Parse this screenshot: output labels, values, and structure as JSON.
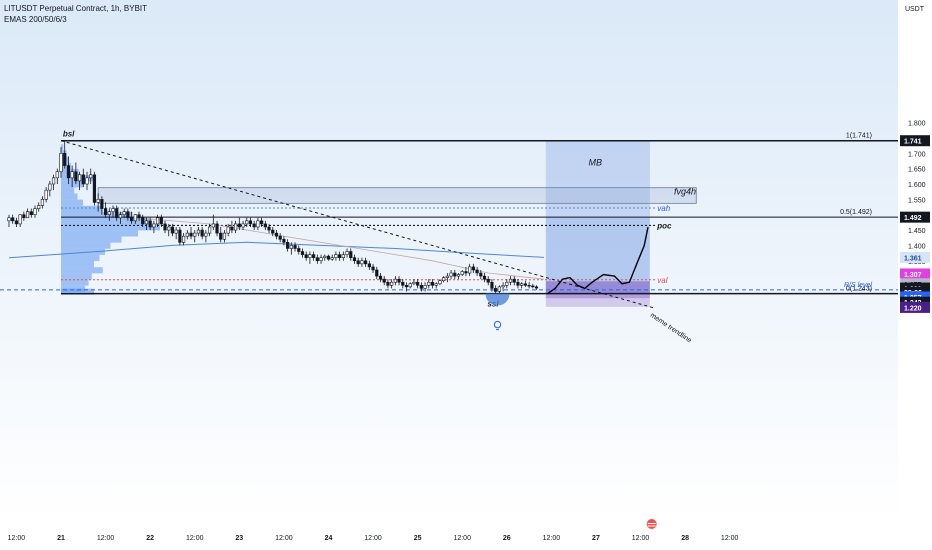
{
  "header": {
    "title": "LITUSDT Perpetual Contract, 1h, BYBIT",
    "indicator": "EMAS 200/50/6/3",
    "currency": "USDT"
  },
  "colors": {
    "up": "#ffffff",
    "down": "#131722",
    "range_fill": "#1e5bd1",
    "fvg_fill": "#8aa4c8",
    "ema_long": "#4f86d6",
    "ema_short": "#c4a8a8",
    "profile": "#4f8ef0",
    "bg_top": "#dbe9f8",
    "bg_bottom": "#ffffff"
  },
  "chart_data": {
    "type": "candlestick",
    "ylim": [
      1.2,
      1.8
    ],
    "y_ticks": [
      "1.800",
      "1.750",
      "1.700",
      "1.650",
      "1.600",
      "1.550",
      "1.500",
      "1.450",
      "1.400",
      "1.350"
    ],
    "x_ticks": [
      {
        "label": "12:00",
        "t": -12
      },
      {
        "label": "21",
        "t": 0
      },
      {
        "label": "12:00",
        "t": 12
      },
      {
        "label": "22",
        "t": 24
      },
      {
        "label": "12:00",
        "t": 36
      },
      {
        "label": "23",
        "t": 48
      },
      {
        "label": "12:00",
        "t": 60
      },
      {
        "label": "24",
        "t": 72
      },
      {
        "label": "12:00",
        "t": 84
      },
      {
        "label": "25",
        "t": 96
      },
      {
        "label": "12:00",
        "t": 108
      },
      {
        "label": "26",
        "t": 120
      },
      {
        "label": "12:00",
        "t": 132
      },
      {
        "label": "27",
        "t": 144
      },
      {
        "label": "12:00",
        "t": 156
      },
      {
        "label": "28",
        "t": 168
      },
      {
        "label": "12:00",
        "t": 180
      }
    ],
    "price_badges": [
      {
        "label": "1.741",
        "price": 1.741,
        "bg": "#131722",
        "fg": "#ffffff"
      },
      {
        "label": "1.492",
        "price": 1.492,
        "bg": "#131722",
        "fg": "#ffffff"
      },
      {
        "label": "1.361",
        "price": 1.361,
        "bg": "#d6e4f7",
        "fg": "#1e4fa0"
      },
      {
        "label": "1.307",
        "price": 1.307,
        "bg": "#e040e0",
        "fg": "#ffffff"
      },
      {
        "label": "1.275",
        "price": 1.275,
        "bg": "#b6b6c8",
        "fg": "#131722"
      },
      {
        "label": "1.261",
        "price": 1.261,
        "bg": "#131722",
        "fg": "#ffffff"
      },
      {
        "label": "33:06",
        "price": 1.248,
        "bg": "#131722",
        "fg": "#ffffff"
      },
      {
        "label": "1.257",
        "price": 1.232,
        "bg": "#2962ff",
        "fg": "#ffffff"
      },
      {
        "label": "1.243",
        "price": 1.215,
        "bg": "#131722",
        "fg": "#ffffff"
      },
      {
        "label": "1.220",
        "price": 1.198,
        "bg": "#4a1f8a",
        "fg": "#ffffff"
      }
    ],
    "levels": [
      {
        "name": "fib-1",
        "price": 1.741,
        "label": "1(1.741)"
      },
      {
        "name": "fib-0-5",
        "price": 1.492,
        "label": "0.5(1.492)"
      },
      {
        "name": "fib-0",
        "price": 1.243,
        "label": "0(1.243)"
      },
      {
        "name": "vah",
        "price": 1.522,
        "label": "vah"
      },
      {
        "name": "poc",
        "price": 1.465,
        "label": "poc"
      },
      {
        "name": "val",
        "price": 1.288,
        "label": "val"
      },
      {
        "name": "rs-level",
        "price": 1.255,
        "label": "R/S level"
      }
    ],
    "annotations": {
      "bsl": "bsl",
      "ssl": "ssl",
      "mb": "MB",
      "fvg": "fvg4h",
      "trendline": "meme trendline"
    },
    "fvg_zone": [
      1.537,
      1.588
    ],
    "mb_zone": [
      1.243,
      1.741
    ],
    "target_box": [
      1.228,
      1.283
    ],
    "candles": [
      [
        -14,
        1.48,
        1.5,
        1.46,
        1.49
      ],
      [
        -13,
        1.49,
        1.5,
        1.47,
        1.48
      ],
      [
        -12,
        1.48,
        1.49,
        1.46,
        1.47
      ],
      [
        -11,
        1.47,
        1.5,
        1.46,
        1.5
      ],
      [
        -10,
        1.5,
        1.51,
        1.48,
        1.49
      ],
      [
        -9,
        1.49,
        1.52,
        1.49,
        1.51
      ],
      [
        -8,
        1.51,
        1.52,
        1.49,
        1.5
      ],
      [
        -7,
        1.5,
        1.53,
        1.49,
        1.52
      ],
      [
        -6,
        1.52,
        1.54,
        1.51,
        1.53
      ],
      [
        -5,
        1.53,
        1.56,
        1.52,
        1.55
      ],
      [
        -4,
        1.55,
        1.59,
        1.54,
        1.58
      ],
      [
        -3,
        1.58,
        1.61,
        1.56,
        1.6
      ],
      [
        -2,
        1.6,
        1.63,
        1.58,
        1.62
      ],
      [
        -1,
        1.62,
        1.65,
        1.6,
        1.64
      ],
      [
        0,
        1.64,
        1.72,
        1.62,
        1.7
      ],
      [
        1,
        1.7,
        1.741,
        1.65,
        1.66
      ],
      [
        2,
        1.66,
        1.69,
        1.6,
        1.62
      ],
      [
        3,
        1.62,
        1.66,
        1.59,
        1.64
      ],
      [
        4,
        1.64,
        1.67,
        1.6,
        1.61
      ],
      [
        5,
        1.61,
        1.64,
        1.58,
        1.63
      ],
      [
        6,
        1.63,
        1.65,
        1.59,
        1.6
      ],
      [
        7,
        1.6,
        1.64,
        1.58,
        1.62
      ],
      [
        8,
        1.62,
        1.65,
        1.6,
        1.63
      ],
      [
        9,
        1.63,
        1.64,
        1.53,
        1.54
      ],
      [
        10,
        1.54,
        1.57,
        1.51,
        1.55
      ],
      [
        11,
        1.55,
        1.56,
        1.5,
        1.52
      ],
      [
        12,
        1.52,
        1.54,
        1.49,
        1.5
      ],
      [
        13,
        1.5,
        1.52,
        1.48,
        1.51
      ],
      [
        14,
        1.51,
        1.53,
        1.49,
        1.52
      ],
      [
        15,
        1.52,
        1.53,
        1.48,
        1.49
      ],
      [
        16,
        1.49,
        1.51,
        1.47,
        1.5
      ],
      [
        17,
        1.5,
        1.52,
        1.49,
        1.51
      ],
      [
        18,
        1.51,
        1.52,
        1.48,
        1.49
      ],
      [
        19,
        1.49,
        1.51,
        1.47,
        1.48
      ],
      [
        20,
        1.48,
        1.5,
        1.47,
        1.5
      ],
      [
        21,
        1.5,
        1.51,
        1.48,
        1.49
      ],
      [
        22,
        1.49,
        1.5,
        1.46,
        1.47
      ],
      [
        23,
        1.47,
        1.49,
        1.45,
        1.48
      ],
      [
        24,
        1.48,
        1.49,
        1.45,
        1.46
      ],
      [
        25,
        1.46,
        1.48,
        1.44,
        1.47
      ],
      [
        26,
        1.47,
        1.5,
        1.46,
        1.49
      ],
      [
        27,
        1.49,
        1.5,
        1.46,
        1.47
      ],
      [
        28,
        1.47,
        1.48,
        1.44,
        1.45
      ],
      [
        29,
        1.45,
        1.47,
        1.43,
        1.46
      ],
      [
        30,
        1.46,
        1.47,
        1.43,
        1.44
      ],
      [
        31,
        1.44,
        1.46,
        1.42,
        1.45
      ],
      [
        32,
        1.45,
        1.46,
        1.4,
        1.41
      ],
      [
        33,
        1.41,
        1.44,
        1.4,
        1.43
      ],
      [
        34,
        1.43,
        1.45,
        1.42,
        1.44
      ],
      [
        35,
        1.44,
        1.46,
        1.42,
        1.43
      ],
      [
        36,
        1.43,
        1.45,
        1.41,
        1.44
      ],
      [
        37,
        1.44,
        1.46,
        1.43,
        1.45
      ],
      [
        38,
        1.45,
        1.46,
        1.42,
        1.43
      ],
      [
        39,
        1.43,
        1.45,
        1.41,
        1.44
      ],
      [
        40,
        1.44,
        1.47,
        1.43,
        1.46
      ],
      [
        41,
        1.46,
        1.5,
        1.45,
        1.47
      ],
      [
        42,
        1.47,
        1.48,
        1.43,
        1.44
      ],
      [
        43,
        1.44,
        1.46,
        1.41,
        1.42
      ],
      [
        44,
        1.42,
        1.45,
        1.41,
        1.44
      ],
      [
        45,
        1.44,
        1.47,
        1.43,
        1.46
      ],
      [
        46,
        1.46,
        1.48,
        1.44,
        1.45
      ],
      [
        47,
        1.45,
        1.48,
        1.44,
        1.47
      ],
      [
        48,
        1.47,
        1.49,
        1.45,
        1.46
      ],
      [
        49,
        1.46,
        1.48,
        1.45,
        1.47
      ],
      [
        50,
        1.47,
        1.49,
        1.46,
        1.48
      ],
      [
        51,
        1.48,
        1.49,
        1.46,
        1.47
      ],
      [
        52,
        1.47,
        1.48,
        1.45,
        1.46
      ],
      [
        53,
        1.46,
        1.49,
        1.45,
        1.48
      ],
      [
        54,
        1.48,
        1.49,
        1.46,
        1.47
      ],
      [
        55,
        1.47,
        1.48,
        1.45,
        1.46
      ],
      [
        56,
        1.46,
        1.47,
        1.44,
        1.45
      ],
      [
        57,
        1.45,
        1.46,
        1.43,
        1.44
      ],
      [
        58,
        1.44,
        1.45,
        1.42,
        1.43
      ],
      [
        59,
        1.43,
        1.44,
        1.41,
        1.42
      ],
      [
        60,
        1.42,
        1.43,
        1.4,
        1.41
      ],
      [
        61,
        1.41,
        1.42,
        1.38,
        1.39
      ],
      [
        62,
        1.39,
        1.41,
        1.37,
        1.4
      ],
      [
        63,
        1.4,
        1.41,
        1.38,
        1.39
      ],
      [
        64,
        1.39,
        1.4,
        1.37,
        1.38
      ],
      [
        65,
        1.38,
        1.39,
        1.36,
        1.37
      ],
      [
        66,
        1.37,
        1.38,
        1.35,
        1.36
      ],
      [
        67,
        1.36,
        1.38,
        1.34,
        1.37
      ],
      [
        68,
        1.37,
        1.38,
        1.35,
        1.36
      ],
      [
        69,
        1.36,
        1.37,
        1.34,
        1.35
      ],
      [
        70,
        1.35,
        1.37,
        1.34,
        1.36
      ],
      [
        71,
        1.36,
        1.37,
        1.35,
        1.365
      ],
      [
        72,
        1.365,
        1.37,
        1.35,
        1.355
      ],
      [
        73,
        1.355,
        1.37,
        1.35,
        1.36
      ],
      [
        74,
        1.36,
        1.38,
        1.35,
        1.37
      ],
      [
        75,
        1.37,
        1.38,
        1.35,
        1.36
      ],
      [
        76,
        1.36,
        1.38,
        1.35,
        1.37
      ],
      [
        77,
        1.37,
        1.39,
        1.36,
        1.38
      ],
      [
        78,
        1.38,
        1.39,
        1.35,
        1.36
      ],
      [
        79,
        1.36,
        1.37,
        1.34,
        1.35
      ],
      [
        80,
        1.35,
        1.36,
        1.33,
        1.34
      ],
      [
        81,
        1.34,
        1.36,
        1.33,
        1.35
      ],
      [
        82,
        1.35,
        1.36,
        1.33,
        1.34
      ],
      [
        83,
        1.34,
        1.35,
        1.32,
        1.33
      ],
      [
        84,
        1.33,
        1.34,
        1.31,
        1.32
      ],
      [
        85,
        1.32,
        1.33,
        1.29,
        1.3
      ],
      [
        86,
        1.3,
        1.31,
        1.28,
        1.29
      ],
      [
        87,
        1.29,
        1.3,
        1.27,
        1.28
      ],
      [
        88,
        1.28,
        1.29,
        1.26,
        1.27
      ],
      [
        89,
        1.27,
        1.29,
        1.26,
        1.28
      ],
      [
        90,
        1.28,
        1.3,
        1.27,
        1.29
      ],
      [
        91,
        1.29,
        1.3,
        1.27,
        1.28
      ],
      [
        92,
        1.28,
        1.29,
        1.26,
        1.27
      ],
      [
        93,
        1.27,
        1.28,
        1.25,
        1.265
      ],
      [
        94,
        1.265,
        1.28,
        1.26,
        1.275
      ],
      [
        95,
        1.275,
        1.29,
        1.27,
        1.28
      ],
      [
        96,
        1.28,
        1.29,
        1.26,
        1.27
      ],
      [
        97,
        1.27,
        1.28,
        1.25,
        1.26
      ],
      [
        98,
        1.26,
        1.28,
        1.25,
        1.27
      ],
      [
        99,
        1.27,
        1.29,
        1.26,
        1.28
      ],
      [
        100,
        1.28,
        1.29,
        1.26,
        1.27
      ],
      [
        101,
        1.27,
        1.28,
        1.26,
        1.275
      ],
      [
        102,
        1.275,
        1.29,
        1.27,
        1.285
      ],
      [
        103,
        1.285,
        1.3,
        1.28,
        1.295
      ],
      [
        104,
        1.295,
        1.31,
        1.28,
        1.3
      ],
      [
        105,
        1.3,
        1.32,
        1.29,
        1.31
      ],
      [
        106,
        1.31,
        1.32,
        1.29,
        1.3
      ],
      [
        107,
        1.3,
        1.31,
        1.29,
        1.305
      ],
      [
        108,
        1.305,
        1.32,
        1.3,
        1.315
      ],
      [
        109,
        1.315,
        1.33,
        1.3,
        1.31
      ],
      [
        110,
        1.31,
        1.34,
        1.3,
        1.33
      ],
      [
        111,
        1.33,
        1.34,
        1.31,
        1.32
      ],
      [
        112,
        1.32,
        1.33,
        1.3,
        1.31
      ],
      [
        113,
        1.31,
        1.32,
        1.29,
        1.3
      ],
      [
        114,
        1.3,
        1.31,
        1.28,
        1.29
      ],
      [
        115,
        1.29,
        1.3,
        1.27,
        1.28
      ],
      [
        116,
        1.28,
        1.29,
        1.25,
        1.26
      ],
      [
        117,
        1.26,
        1.27,
        1.243,
        1.25
      ],
      [
        118,
        1.25,
        1.27,
        1.245,
        1.265
      ],
      [
        119,
        1.265,
        1.28,
        1.25,
        1.27
      ],
      [
        120,
        1.27,
        1.29,
        1.26,
        1.28
      ],
      [
        121,
        1.28,
        1.3,
        1.27,
        1.29
      ],
      [
        122,
        1.29,
        1.3,
        1.27,
        1.28
      ],
      [
        123,
        1.28,
        1.29,
        1.26,
        1.27
      ],
      [
        124,
        1.27,
        1.28,
        1.26,
        1.275
      ],
      [
        125,
        1.275,
        1.285,
        1.265,
        1.27
      ],
      [
        126,
        1.27,
        1.28,
        1.26,
        1.268
      ],
      [
        127,
        1.268,
        1.275,
        1.26,
        1.265
      ],
      [
        128,
        1.265,
        1.27,
        1.255,
        1.261
      ]
    ],
    "ema_long": [
      [
        -14,
        1.36
      ],
      [
        10,
        1.38
      ],
      [
        30,
        1.4
      ],
      [
        50,
        1.41
      ],
      [
        70,
        1.4
      ],
      [
        90,
        1.39
      ],
      [
        110,
        1.375
      ],
      [
        130,
        1.361
      ]
    ],
    "ema_short": [
      [
        20,
        1.49
      ],
      [
        40,
        1.47
      ],
      [
        60,
        1.43
      ],
      [
        80,
        1.39
      ],
      [
        100,
        1.35
      ],
      [
        115,
        1.31
      ],
      [
        130,
        1.29
      ]
    ],
    "projection": [
      [
        131,
        1.243
      ],
      [
        133,
        1.26
      ],
      [
        135,
        1.29
      ],
      [
        137,
        1.295
      ],
      [
        139,
        1.27
      ],
      [
        141,
        1.26
      ],
      [
        143,
        1.28
      ],
      [
        146,
        1.305
      ],
      [
        149,
        1.3
      ],
      [
        151,
        1.275
      ],
      [
        153,
        1.28
      ],
      [
        155,
        1.34
      ],
      [
        157,
        1.4
      ],
      [
        158,
        1.46
      ]
    ],
    "volume_profile": [
      [
        1.72,
        0.02
      ],
      [
        1.7,
        0.05
      ],
      [
        1.68,
        0.07
      ],
      [
        1.66,
        0.09
      ],
      [
        1.64,
        0.16
      ],
      [
        1.62,
        0.3
      ],
      [
        1.6,
        0.2
      ],
      [
        1.58,
        0.12
      ],
      [
        1.56,
        0.15
      ],
      [
        1.54,
        0.2
      ],
      [
        1.52,
        0.38
      ],
      [
        1.5,
        0.65
      ],
      [
        1.48,
        0.8
      ],
      [
        1.46,
        0.9
      ],
      [
        1.44,
        0.7
      ],
      [
        1.42,
        0.55
      ],
      [
        1.4,
        0.45
      ],
      [
        1.38,
        0.4
      ],
      [
        1.36,
        0.35
      ],
      [
        1.34,
        0.3
      ],
      [
        1.32,
        0.38
      ],
      [
        1.3,
        0.28
      ],
      [
        1.28,
        0.25
      ],
      [
        1.26,
        0.22
      ],
      [
        1.25,
        0.3
      ]
    ]
  }
}
